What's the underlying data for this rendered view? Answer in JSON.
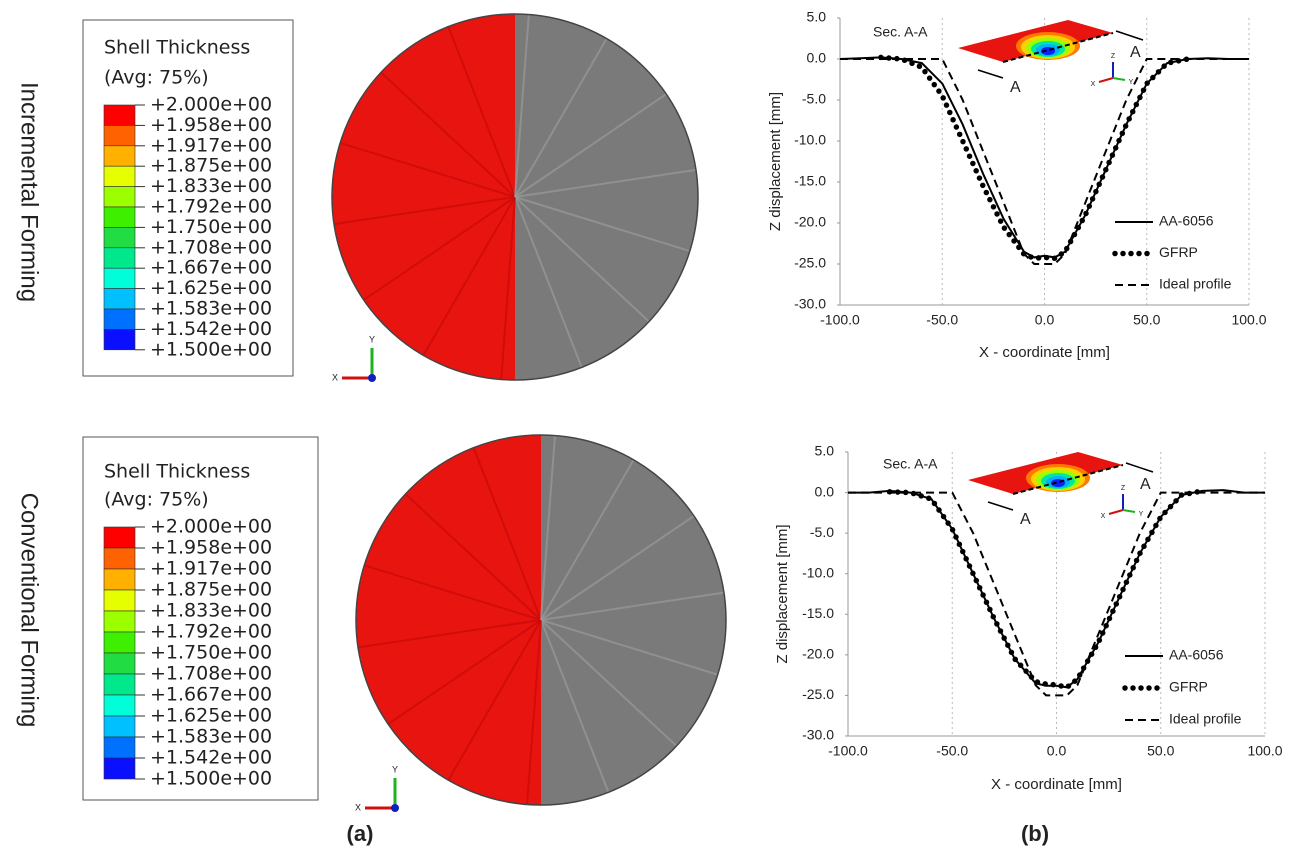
{
  "panel_labels": [
    "(a)",
    "(b)"
  ],
  "contour_plots": [
    {
      "row_label": "Incremental Forming",
      "legend": {
        "title": "Shell Thickness",
        "subtitle": "(Avg: 75%)",
        "levels": [
          "+2.000e+00",
          "+1.958e+00",
          "+1.917e+00",
          "+1.875e+00",
          "+1.833e+00",
          "+1.792e+00",
          "+1.750e+00",
          "+1.708e+00",
          "+1.667e+00",
          "+1.625e+00",
          "+1.583e+00",
          "+1.542e+00",
          "+1.500e+00"
        ],
        "colors": [
          "#ff0000",
          "#ff6200",
          "#ffb000",
          "#e6ff00",
          "#9cff00",
          "#3ef000",
          "#22dc44",
          "#00e88c",
          "#00ffd8",
          "#00c0ff",
          "#0070ff",
          "#0a10ff"
        ]
      },
      "triad_labels": [
        "Y",
        "X"
      ]
    },
    {
      "row_label": "Conventional Forming",
      "legend": {
        "title": "Shell Thickness",
        "subtitle": "(Avg: 75%)",
        "levels": [
          "+2.000e+00",
          "+1.958e+00",
          "+1.917e+00",
          "+1.875e+00",
          "+1.833e+00",
          "+1.792e+00",
          "+1.750e+00",
          "+1.708e+00",
          "+1.667e+00",
          "+1.625e+00",
          "+1.583e+00",
          "+1.542e+00",
          "+1.500e+00"
        ],
        "colors": [
          "#ff0000",
          "#ff6200",
          "#ffb000",
          "#e6ff00",
          "#9cff00",
          "#3ef000",
          "#22dc44",
          "#00e88c",
          "#00ffd8",
          "#00c0ff",
          "#0070ff",
          "#0a10ff"
        ]
      },
      "triad_labels": [
        "Y",
        "X"
      ]
    }
  ],
  "chart_data": [
    {
      "type": "line",
      "x_label": "X - coordinate [mm]",
      "y_label": "Z displacement [mm]",
      "annotations": [
        "Sec. A-A",
        "A",
        "A"
      ],
      "inset_axis_labels": [
        "Z",
        "X",
        "Y"
      ],
      "grid": "x",
      "x": [
        -100,
        -90,
        -80,
        -70,
        -60,
        -50,
        -40,
        -30,
        -20,
        -10,
        -5,
        0,
        5,
        10,
        20,
        30,
        40,
        50,
        60,
        70,
        80,
        90,
        100
      ],
      "xlim": [
        -100,
        100
      ],
      "xticks": [
        {
          "value": -100,
          "label": "-100.0"
        },
        {
          "value": -50,
          "label": "-50.0"
        },
        {
          "value": 0,
          "label": "0.0"
        },
        {
          "value": 50,
          "label": "50.0"
        },
        {
          "value": 100,
          "label": "100.0"
        }
      ],
      "ylim": [
        -30,
        5
      ],
      "yticks": [
        {
          "value": 5,
          "label": "5.0"
        },
        {
          "value": 0,
          "label": "0.0"
        },
        {
          "value": -5,
          "label": "-5.0"
        },
        {
          "value": -10,
          "label": "-10.0"
        },
        {
          "value": -15,
          "label": "-15.0"
        },
        {
          "value": -20,
          "label": "-20.0"
        },
        {
          "value": -25,
          "label": "-25.0"
        },
        {
          "value": -30,
          "label": "-30.0"
        }
      ],
      "series": [
        {
          "name": "AA-6056",
          "color": "#000000",
          "style": "solid",
          "values": [
            0,
            0.1,
            0.2,
            0,
            -0.5,
            -3,
            -8,
            -14,
            -19.5,
            -23.5,
            -24.2,
            -24,
            -24.2,
            -23.5,
            -19,
            -13.5,
            -8,
            -3,
            -0.5,
            0,
            0.1,
            0,
            0
          ]
        },
        {
          "name": "GFRP",
          "color": "#000000",
          "style": "dotted",
          "values": [
            null,
            null,
            0.2,
            0,
            -1,
            -4.5,
            -10,
            -15.5,
            -20.5,
            -23.8,
            -24.3,
            -24.2,
            -24.3,
            -23.5,
            -19,
            -13.5,
            -8,
            -3,
            -0.5,
            0,
            null,
            null,
            null
          ]
        },
        {
          "name": "Ideal profile",
          "color": "#000000",
          "style": "dashed",
          "values": [
            0,
            0,
            0,
            0,
            0,
            0,
            -5,
            -11.25,
            -17.5,
            -23.75,
            -25,
            -25,
            -25,
            -23.75,
            -17.5,
            -11.25,
            -5,
            0,
            0,
            0,
            0,
            0,
            0
          ]
        }
      ]
    },
    {
      "type": "line",
      "x_label": "X - coordinate [mm]",
      "y_label": "Z displacement [mm]",
      "annotations": [
        "Sec. A-A",
        "A",
        "A"
      ],
      "inset_axis_labels": [
        "Z",
        "X",
        "Y"
      ],
      "grid": "x",
      "x": [
        -100,
        -90,
        -80,
        -70,
        -60,
        -50,
        -40,
        -30,
        -20,
        -10,
        -5,
        0,
        5,
        10,
        20,
        30,
        40,
        50,
        60,
        70,
        80,
        90,
        100
      ],
      "xlim": [
        -100,
        100
      ],
      "xticks": [
        {
          "value": -100,
          "label": "-100.0"
        },
        {
          "value": -50,
          "label": "-50.0"
        },
        {
          "value": 0,
          "label": "0.0"
        },
        {
          "value": 50,
          "label": "50.0"
        },
        {
          "value": 100,
          "label": "100.0"
        }
      ],
      "ylim": [
        -30,
        5
      ],
      "yticks": [
        {
          "value": 5,
          "label": "5.0"
        },
        {
          "value": 0,
          "label": "0.0"
        },
        {
          "value": -5,
          "label": "-5.0"
        },
        {
          "value": -10,
          "label": "-10.0"
        },
        {
          "value": -15,
          "label": "-15.0"
        },
        {
          "value": -20,
          "label": "-20.0"
        },
        {
          "value": -25,
          "label": "-25.0"
        },
        {
          "value": -30,
          "label": "-30.0"
        }
      ],
      "series": [
        {
          "name": "AA-6056",
          "color": "#000000",
          "style": "solid",
          "values": [
            0,
            0,
            0.2,
            0,
            -0.8,
            -4.5,
            -10,
            -15.5,
            -20.5,
            -23.5,
            -23.8,
            -23.8,
            -24,
            -23,
            -18.5,
            -13,
            -7.5,
            -3,
            -0.3,
            0.2,
            0.3,
            0,
            0
          ]
        },
        {
          "name": "GFRP",
          "color": "#000000",
          "style": "dotted",
          "values": [
            null,
            null,
            0.1,
            0,
            -0.8,
            -4.5,
            -10,
            -15.5,
            -20.5,
            -23.3,
            -23.6,
            -23.7,
            -24,
            -23,
            -18.5,
            -13,
            -7.5,
            -3,
            -0.3,
            0.2,
            null,
            null,
            null
          ]
        },
        {
          "name": "Ideal profile",
          "color": "#000000",
          "style": "dashed",
          "values": [
            0,
            0,
            0,
            0,
            0,
            0,
            -5,
            -11.25,
            -17.5,
            -23.75,
            -25,
            -25,
            -25,
            -23.75,
            -17.5,
            -11.25,
            -5,
            0,
            0,
            0,
            0,
            0,
            0
          ]
        }
      ]
    }
  ]
}
